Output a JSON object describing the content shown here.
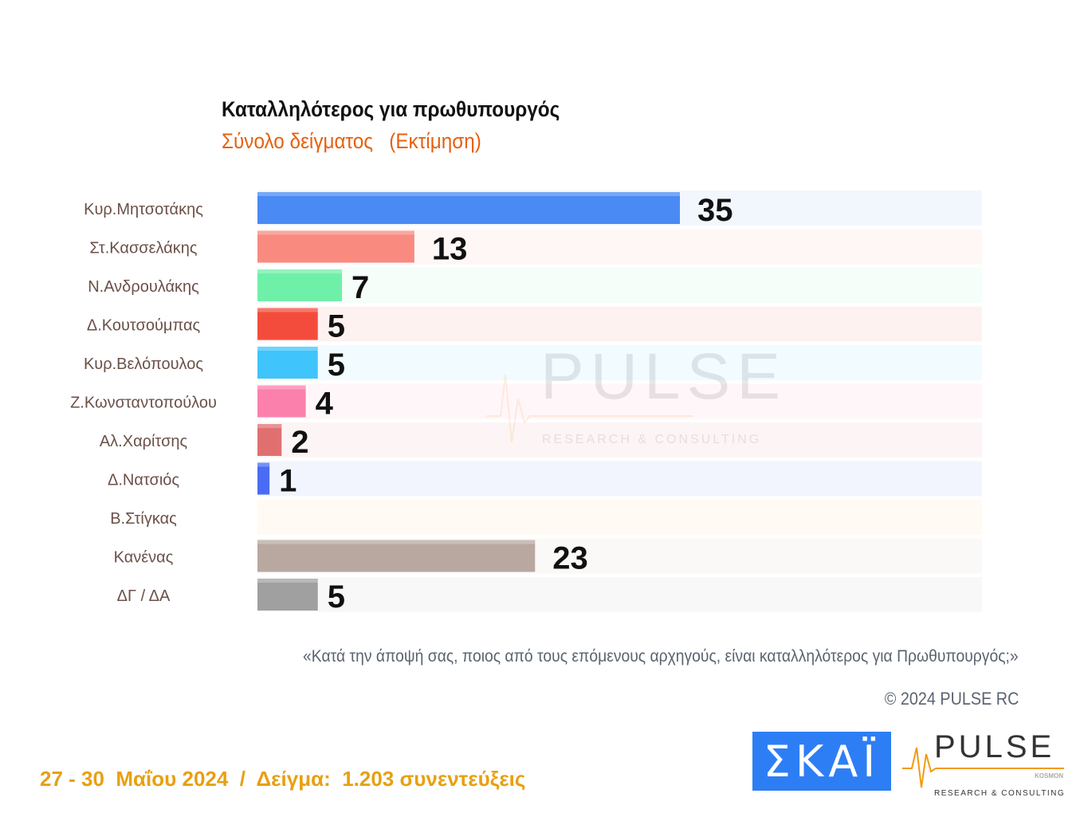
{
  "chart_data": {
    "type": "bar",
    "orientation": "horizontal",
    "title": "Καταλληλότερος για πρωθυπουργός",
    "subtitle": "Σύνολο δείγματος   (Εκτίμηση)",
    "categories": [
      "Κυρ.Μητσοτάκης",
      "Στ.Κασσελάκης",
      "Ν.Ανδρουλάκης",
      "Δ.Κουτσούμπας",
      "Κυρ.Βελόπουλος",
      "Ζ.Κωνσταντοπούλου",
      "Αλ.Χαρίτσης",
      "Δ.Νατσιός",
      "Β.Στίγκας",
      "Κανένας",
      "ΔΓ / ΔΑ"
    ],
    "values": [
      35,
      13,
      7,
      5,
      5,
      4,
      2,
      1,
      null,
      23,
      5
    ],
    "colors": [
      "#4a8af4",
      "#f98a80",
      "#6ef0a8",
      "#f44c3c",
      "#40c4fc",
      "#fc80ac",
      "#e07070",
      "#4a6cf4",
      "#f8c060",
      "#b8a8a0",
      "#a0a0a0"
    ],
    "xlim": [
      0,
      60
    ],
    "grid": false,
    "legend": "none"
  },
  "question": "«Κατά την άποψή σας, ποιος από τους επόμενους αρχηγούς, είναι καταλληλότερος για Πρωθυπουργός;»",
  "copyright": "© 2024 PULSE RC",
  "footer": "27 - 30  Μαΐου 2024  /  Δείγμα:  1.203 συνεντεύξεις",
  "logos": {
    "skai": "ΣΚΑΪ",
    "pulse": "PULSE",
    "pulse_tagline": "RESEARCH & CONSULTING",
    "pulse_sub": "KOSMON"
  }
}
